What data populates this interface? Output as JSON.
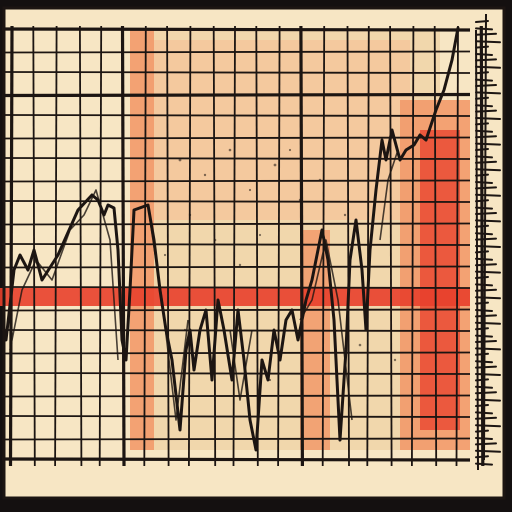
{
  "artwork": {
    "kind": "illustration",
    "palette": {
      "frame": "#141010",
      "paper": "#f7e6c4",
      "paper_shade": "#f0d3a8",
      "peach": "#f4c49a",
      "orange": "#f29a6a",
      "red": "#e8402c",
      "ink": "#1c1512"
    }
  }
}
